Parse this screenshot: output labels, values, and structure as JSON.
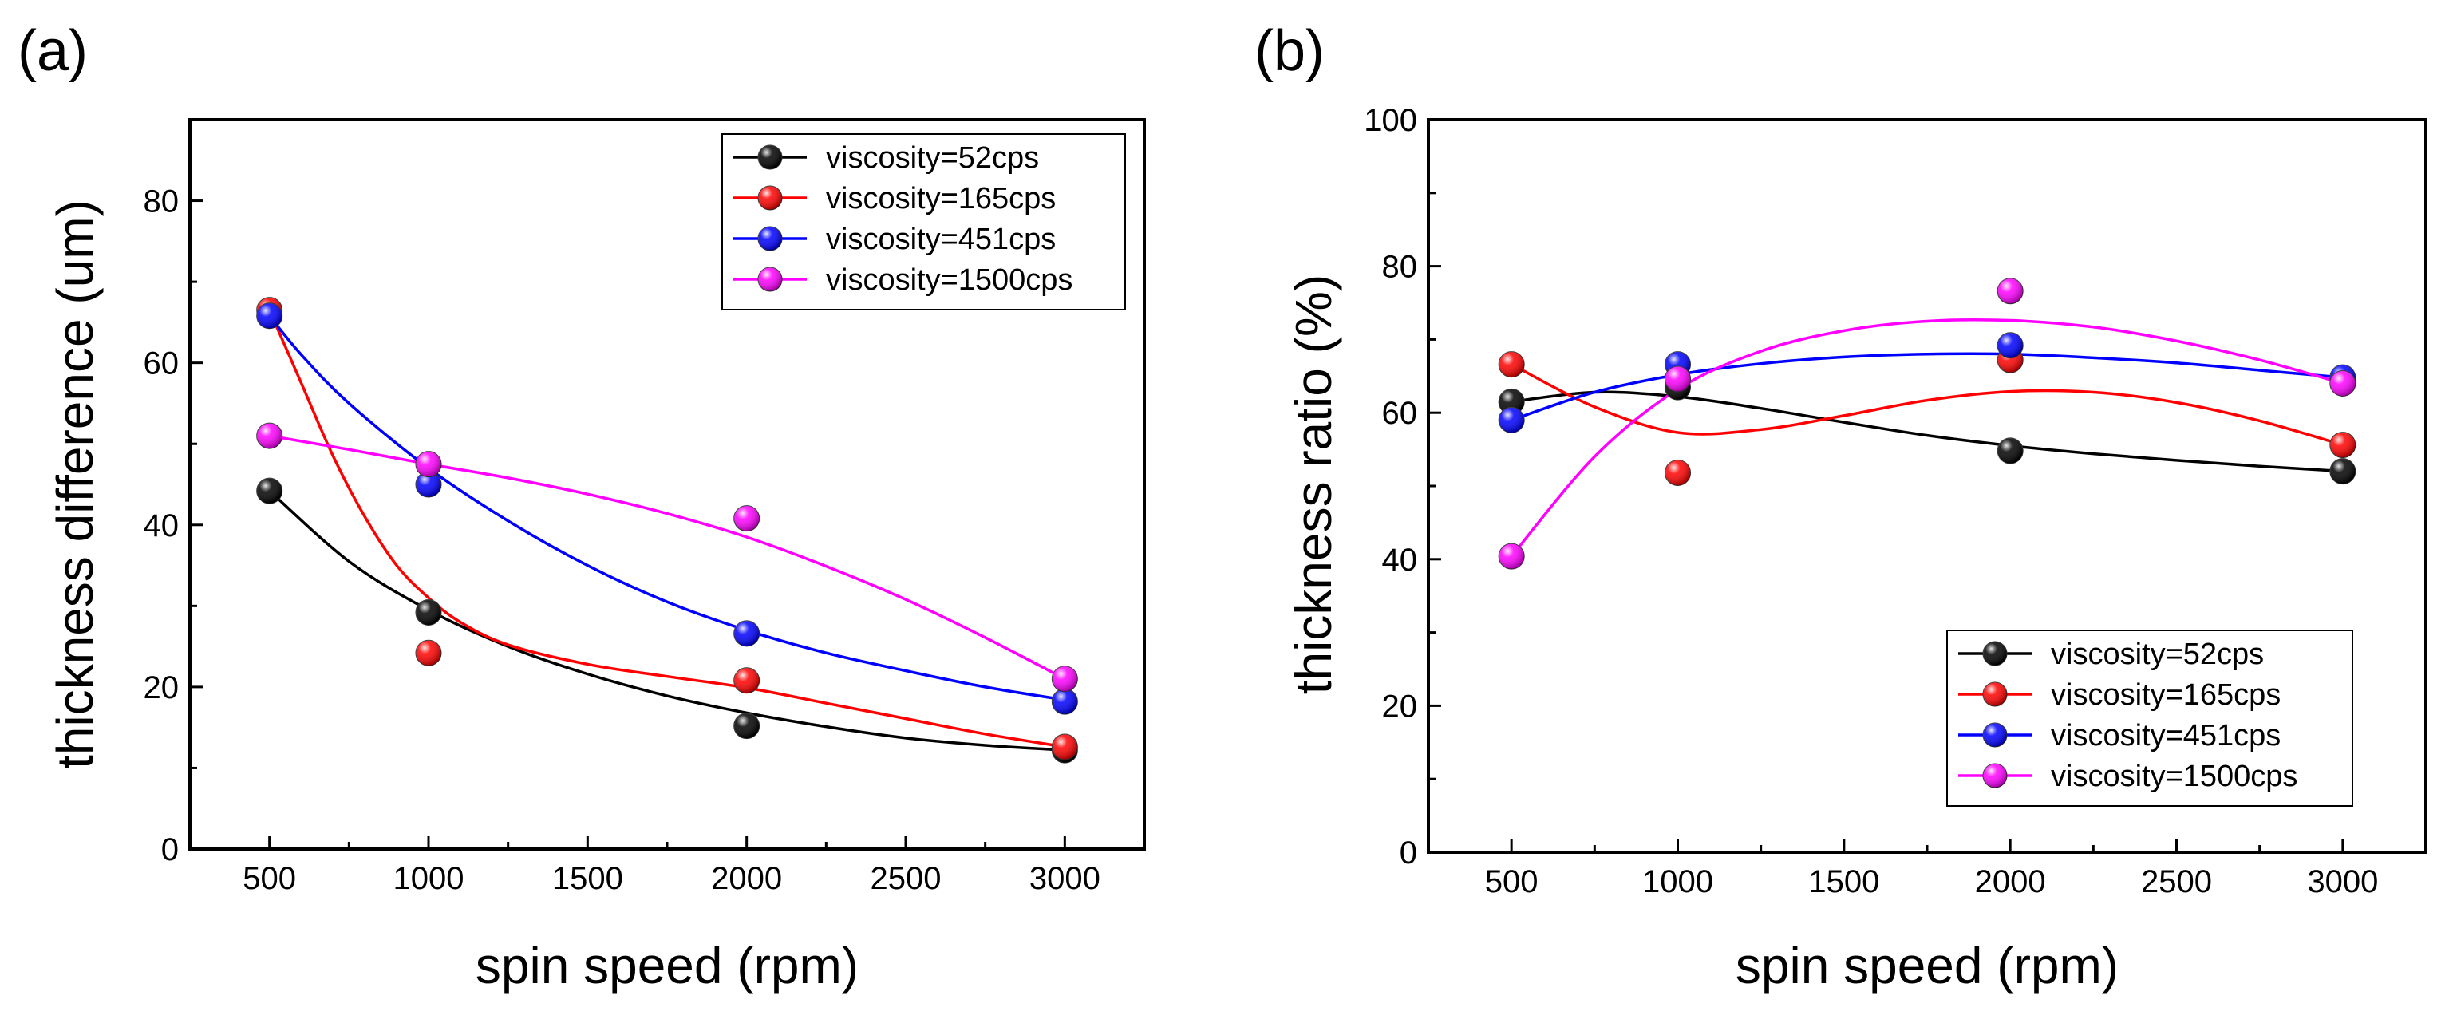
{
  "figure_labels": [
    "(a)",
    "(b)"
  ],
  "chart_data": [
    {
      "type": "scatter",
      "panel": "(a)",
      "title": "",
      "xlabel": "spin speed (rpm)",
      "ylabel": "thickness difference (um)",
      "xlim": [
        250,
        3250
      ],
      "ylim": [
        0,
        90
      ],
      "xticks": [
        500,
        1000,
        1500,
        2000,
        2500,
        3000
      ],
      "yticks": [
        0,
        20,
        40,
        60,
        80
      ],
      "grid": false,
      "legend_position": "top-right",
      "x": [
        500,
        1000,
        2000,
        3000
      ],
      "series": [
        {
          "name": "viscosity=52cps",
          "color": "#000000",
          "values": [
            44.2,
            29.2,
            15.2,
            12.2
          ],
          "fit": [
            [
              500,
              44.2
            ],
            [
              750,
              35.5
            ],
            [
              1000,
              29.5
            ],
            [
              1250,
              25
            ],
            [
              1500,
              21.6
            ],
            [
              1750,
              18.9
            ],
            [
              2000,
              16.8
            ],
            [
              2250,
              15.1
            ],
            [
              2500,
              13.7
            ],
            [
              2750,
              12.8
            ],
            [
              3000,
              12.2
            ]
          ]
        },
        {
          "name": "viscosity=165cps",
          "color": "#ff0000",
          "values": [
            66.5,
            24.2,
            20.8,
            12.6
          ],
          "fit": [
            [
              500,
              66.5
            ],
            [
              600,
              57.5
            ],
            [
              700,
              48.5
            ],
            [
              800,
              41
            ],
            [
              900,
              35
            ],
            [
              1000,
              31
            ],
            [
              1100,
              28
            ],
            [
              1250,
              25.2
            ],
            [
              1500,
              22.8
            ],
            [
              1750,
              21.3
            ],
            [
              2000,
              19.9
            ],
            [
              2250,
              18
            ],
            [
              2500,
              16.1
            ],
            [
              2750,
              14.2
            ],
            [
              3000,
              12.6
            ]
          ]
        },
        {
          "name": "viscosity=451cps",
          "color": "#0000ff",
          "values": [
            65.8,
            45.0,
            26.6,
            18.2
          ],
          "fit": [
            [
              500,
              65.8
            ],
            [
              600,
              61
            ],
            [
              750,
              55
            ],
            [
              1000,
              47
            ],
            [
              1250,
              40.5
            ],
            [
              1500,
              35
            ],
            [
              1750,
              30.5
            ],
            [
              2000,
              27
            ],
            [
              2250,
              24.2
            ],
            [
              2500,
              22
            ],
            [
              2750,
              20
            ],
            [
              3000,
              18.4
            ]
          ]
        },
        {
          "name": "viscosity=1500cps",
          "color": "#ff00ff",
          "values": [
            51.0,
            47.5,
            40.8,
            21.0
          ],
          "fit": [
            [
              500,
              51
            ],
            [
              750,
              49.3
            ],
            [
              1000,
              47.5
            ],
            [
              1250,
              45.8
            ],
            [
              1500,
              43.8
            ],
            [
              1750,
              41.4
            ],
            [
              2000,
              38.5
            ],
            [
              2250,
              34.9
            ],
            [
              2500,
              30.8
            ],
            [
              2750,
              26.1
            ],
            [
              3000,
              21
            ]
          ]
        }
      ]
    },
    {
      "type": "scatter",
      "panel": "(b)",
      "title": "",
      "xlabel": "spin speed (rpm)",
      "ylabel": "thickness ratio (%)",
      "xlim": [
        250,
        3250
      ],
      "ylim": [
        0,
        100
      ],
      "xticks": [
        500,
        1000,
        1500,
        2000,
        2500,
        3000
      ],
      "yticks": [
        0,
        20,
        40,
        60,
        80,
        100
      ],
      "grid": false,
      "legend_position": "bottom-right",
      "x": [
        500,
        1000,
        2000,
        3000
      ],
      "series": [
        {
          "name": "viscosity=52cps",
          "color": "#000000",
          "values": [
            61.5,
            63.5,
            54.8,
            52.0
          ],
          "fit": [
            [
              500,
              61.5
            ],
            [
              750,
              62.8
            ],
            [
              1000,
              62.2
            ],
            [
              1250,
              60.6
            ],
            [
              1500,
              58.7
            ],
            [
              1750,
              56.9
            ],
            [
              2000,
              55.5
            ],
            [
              2250,
              54.4
            ],
            [
              2500,
              53.5
            ],
            [
              2750,
              52.7
            ],
            [
              3000,
              52
            ]
          ]
        },
        {
          "name": "viscosity=165cps",
          "color": "#ff0000",
          "values": [
            66.6,
            51.8,
            67.2,
            55.6
          ],
          "fit": [
            [
              500,
              66.6
            ],
            [
              750,
              60.8
            ],
            [
              1000,
              57.3
            ],
            [
              1250,
              57.7
            ],
            [
              1500,
              59.6
            ],
            [
              1750,
              61.7
            ],
            [
              2000,
              62.9
            ],
            [
              2250,
              62.8
            ],
            [
              2500,
              61.4
            ],
            [
              2750,
              58.9
            ],
            [
              3000,
              55.6
            ]
          ]
        },
        {
          "name": "viscosity=451cps",
          "color": "#0000ff",
          "values": [
            59.0,
            66.6,
            69.2,
            64.8
          ],
          "fit": [
            [
              500,
              59
            ],
            [
              750,
              62.8
            ],
            [
              1000,
              65.2
            ],
            [
              1250,
              66.7
            ],
            [
              1500,
              67.6
            ],
            [
              1750,
              68
            ],
            [
              2000,
              68
            ],
            [
              2250,
              67.5
            ],
            [
              2500,
              66.8
            ],
            [
              2750,
              65.8
            ],
            [
              3000,
              64.8
            ]
          ]
        },
        {
          "name": "viscosity=1500cps",
          "color": "#ff00ff",
          "values": [
            40.4,
            64.6,
            76.6,
            64.0
          ],
          "fit": [
            [
              500,
              40.4
            ],
            [
              750,
              54
            ],
            [
              1000,
              63.2
            ],
            [
              1250,
              68.4
            ],
            [
              1500,
              71.2
            ],
            [
              1750,
              72.5
            ],
            [
              2000,
              72.6
            ],
            [
              2250,
              71.7
            ],
            [
              2500,
              69.8
            ],
            [
              2750,
              67.2
            ],
            [
              3000,
              64
            ]
          ]
        }
      ]
    }
  ]
}
